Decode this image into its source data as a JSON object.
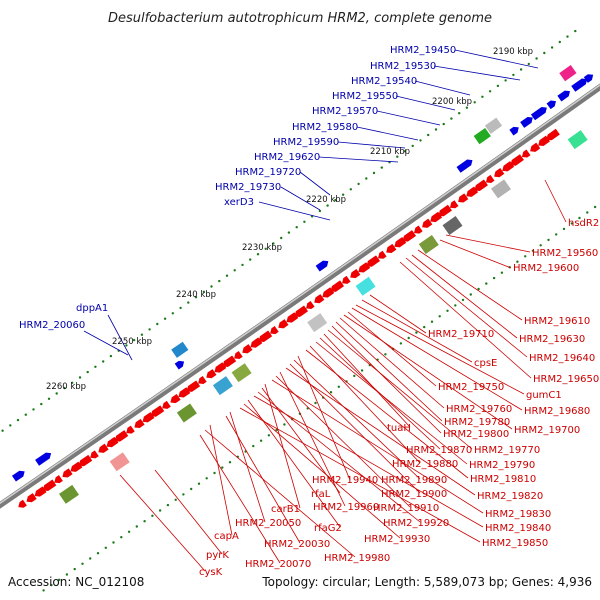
{
  "title": "Desulfobacterium autotrophicum HRM2, complete genome",
  "footer": {
    "accession": "Accession: NC_012108",
    "info": "Topology: circular; Length: 5,589,073 bp; Genes: 4,936"
  },
  "scale_labels": [
    "2190 kbp",
    "2200 kbp",
    "2210 kbp",
    "2220 kbp",
    "2230 kbp",
    "2240 kbp",
    "2250 kbp",
    "2260 kbp"
  ],
  "colors": {
    "backbone": "#8c8c8c",
    "plus_gene": "#0000e0",
    "minus_gene": "#ee0000",
    "tick": "#1a7a1a",
    "label_blue": "#0000aa",
    "label_red": "#cc0000"
  },
  "upper_labels": [
    "HRM2_19450",
    "HRM2_19530",
    "HRM2_19540",
    "HRM2_19550",
    "HRM2_19570",
    "HRM2_19580",
    "HRM2_19590",
    "HRM2_19620",
    "HRM2_19720",
    "HRM2_19730",
    "xerD3",
    "dppA1",
    "HRM2_20060"
  ],
  "lower_labels": [
    "hsdR2",
    "HRM2_19560",
    "HRM2_19600",
    "HRM2_19610",
    "HRM2_19630",
    "HRM2_19640",
    "HRM2_19650",
    "HRM2_19710",
    "cpsE",
    "gumC1",
    "HRM2_19680",
    "HRM2_19750",
    "HRM2_19700",
    "HRM2_19760",
    "HRM2_19780",
    "HRM2_19800",
    "HRM2_19770",
    "tuaH",
    "HRM2_19870",
    "HRM2_19790",
    "HRM2_19880",
    "HRM2_19810",
    "HRM2_19940",
    "HRM2_19890",
    "HRM2_19900",
    "HRM2_19820",
    "HRM2_19960",
    "HRM2_19910",
    "HRM2_19830",
    "carB1",
    "rfaL",
    "HRM2_19920",
    "HRM2_19840",
    "rfaG2",
    "HRM2_19930",
    "HRM2_19850",
    "HRM2_20050",
    "HRM2_20030",
    "capA",
    "HRM2_19980",
    "HRM2_20070",
    "pyrK",
    "cysK"
  ]
}
